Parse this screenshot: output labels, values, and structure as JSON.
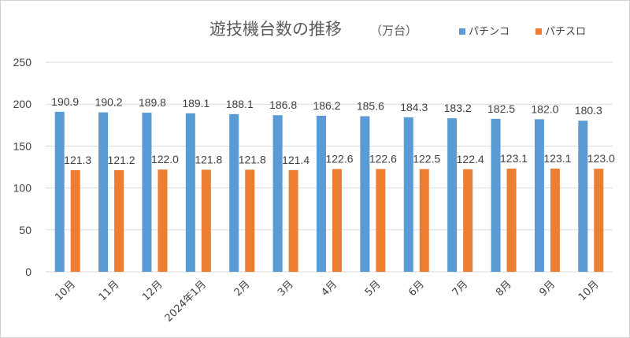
{
  "chart_data": {
    "type": "bar",
    "title": "遊技機台数の推移",
    "subtitle": "（万台）",
    "categories": [
      "10月",
      "11月",
      "12月",
      "2024年1月",
      "2月",
      "3月",
      "4月",
      "5月",
      "6月",
      "7月",
      "8月",
      "9月",
      "10月"
    ],
    "series": [
      {
        "name": "パチンコ",
        "color": "#5b9bd5",
        "values": [
          190.9,
          190.2,
          189.8,
          189.1,
          188.1,
          186.8,
          186.2,
          185.6,
          184.3,
          183.2,
          182.5,
          182.0,
          180.3
        ]
      },
      {
        "name": "パチスロ",
        "color": "#ed7d31",
        "values": [
          121.3,
          121.2,
          122.0,
          121.8,
          121.8,
          121.4,
          122.6,
          122.6,
          122.5,
          122.4,
          123.1,
          123.1,
          123.0
        ]
      }
    ],
    "y_ticks": [
      "0",
      "50",
      "100",
      "150",
      "200",
      "250"
    ],
    "ylim": [
      0,
      250
    ],
    "legend_position": "top-right",
    "grid": true,
    "xlabel": "",
    "ylabel": ""
  }
}
